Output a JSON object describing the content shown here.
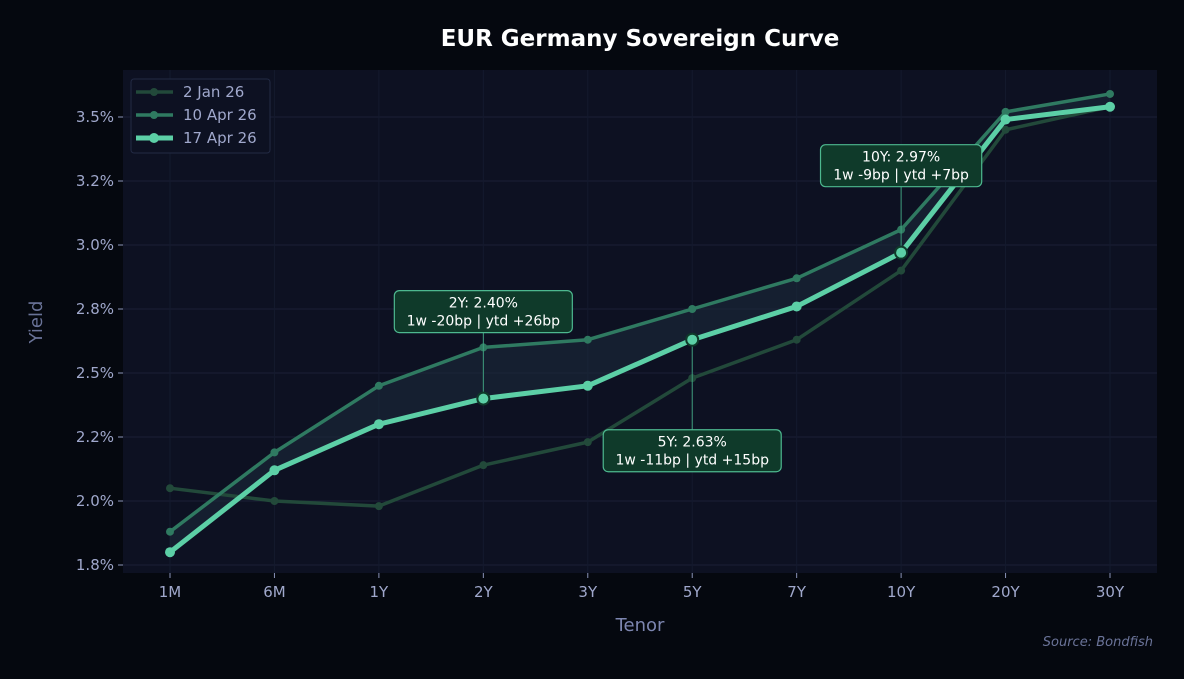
{
  "chart_data": {
    "type": "line",
    "title": "EUR Germany Sovereign Curve",
    "xlabel": "Tenor",
    "ylabel": "Yield",
    "categories": [
      "1M",
      "6M",
      "1Y",
      "2Y",
      "3Y",
      "5Y",
      "7Y",
      "10Y",
      "20Y",
      "30Y"
    ],
    "ylim": [
      1.72,
      3.69
    ],
    "yticks": [
      1.75,
      2.0,
      2.25,
      2.5,
      2.75,
      3.0,
      3.25,
      3.5
    ],
    "ytick_labels": [
      "1.8%",
      "2.0%",
      "2.2%",
      "2.5%",
      "2.8%",
      "3.0%",
      "3.2%",
      "3.5%"
    ],
    "grid": true,
    "legend_position": "top-left",
    "series": [
      {
        "name": "2 Jan 26",
        "color": "#22493a",
        "values": [
          2.05,
          2.0,
          1.98,
          2.14,
          2.23,
          2.48,
          2.63,
          2.9,
          3.45,
          3.54
        ]
      },
      {
        "name": "10 Apr 26",
        "color": "#2f7a61",
        "values": [
          1.88,
          2.19,
          2.45,
          2.6,
          2.63,
          2.75,
          2.87,
          3.06,
          3.52,
          3.59
        ]
      },
      {
        "name": "17 Apr 26",
        "color": "#5ccfa6",
        "values": [
          1.8,
          2.12,
          2.3,
          2.4,
          2.45,
          2.63,
          2.76,
          2.97,
          3.49,
          3.54
        ]
      }
    ],
    "annotations": [
      {
        "tenor": "2Y",
        "line1": "2Y: 2.40%",
        "line2": "1w -20bp | ytd +26bp",
        "placement": "above"
      },
      {
        "tenor": "5Y",
        "line1": "5Y: 2.63%",
        "line2": "1w -11bp | ytd +15bp",
        "placement": "below"
      },
      {
        "tenor": "10Y",
        "line1": "10Y: 2.97%",
        "line2": "1w -9bp | ytd +7bp",
        "placement": "above"
      }
    ],
    "source": "Source: Bondfish"
  }
}
